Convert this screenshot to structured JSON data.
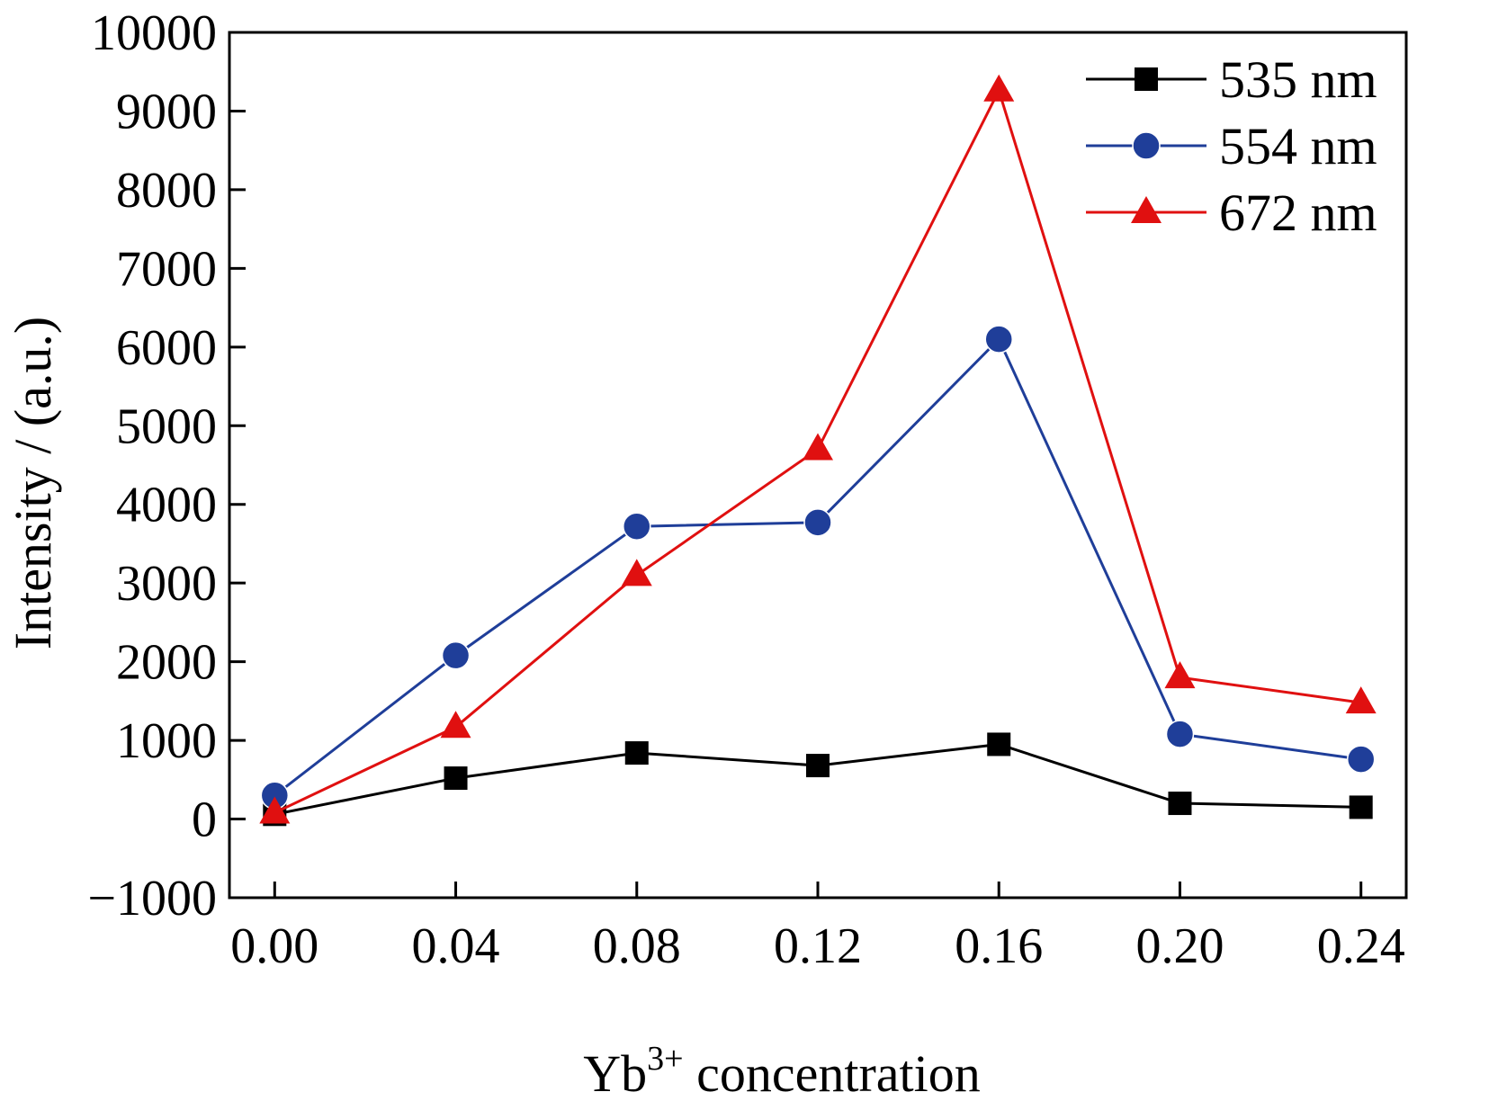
{
  "chart_data": {
    "type": "line",
    "title": "",
    "xlabel": "Yb",
    "xlabel_sup": "3+",
    "xlabel_rest": " concentration",
    "ylabel": "Intensity / (a.u.)",
    "x": [
      0.0,
      0.04,
      0.08,
      0.12,
      0.16,
      0.2,
      0.24
    ],
    "x_tick_labels": [
      "0.00",
      "0.04",
      "0.08",
      "0.12",
      "0.16",
      "0.20",
      "0.24"
    ],
    "y_ticks": [
      -1000,
      0,
      1000,
      2000,
      3000,
      4000,
      5000,
      6000,
      7000,
      8000,
      9000,
      10000
    ],
    "y_tick_labels": [
      "−1000",
      "0",
      "1000",
      "2000",
      "3000",
      "4000",
      "5000",
      "6000",
      "7000",
      "8000",
      "9000",
      "10000"
    ],
    "xlim": [
      -0.01,
      0.25
    ],
    "ylim": [
      -1000,
      10000
    ],
    "grid": false,
    "legend_position": "top-right",
    "series": [
      {
        "name": "535 nm",
        "color": "#000000",
        "marker": "square",
        "values": [
          60,
          520,
          840,
          680,
          950,
          200,
          150
        ]
      },
      {
        "name": "554 nm",
        "color": "#1f3e99",
        "marker": "circle",
        "values": [
          300,
          2080,
          3720,
          3770,
          6100,
          1080,
          760
        ]
      },
      {
        "name": "672 nm",
        "color": "#e01010",
        "marker": "triangle",
        "values": [
          80,
          1170,
          3100,
          4700,
          9260,
          1800,
          1480
        ]
      }
    ]
  }
}
